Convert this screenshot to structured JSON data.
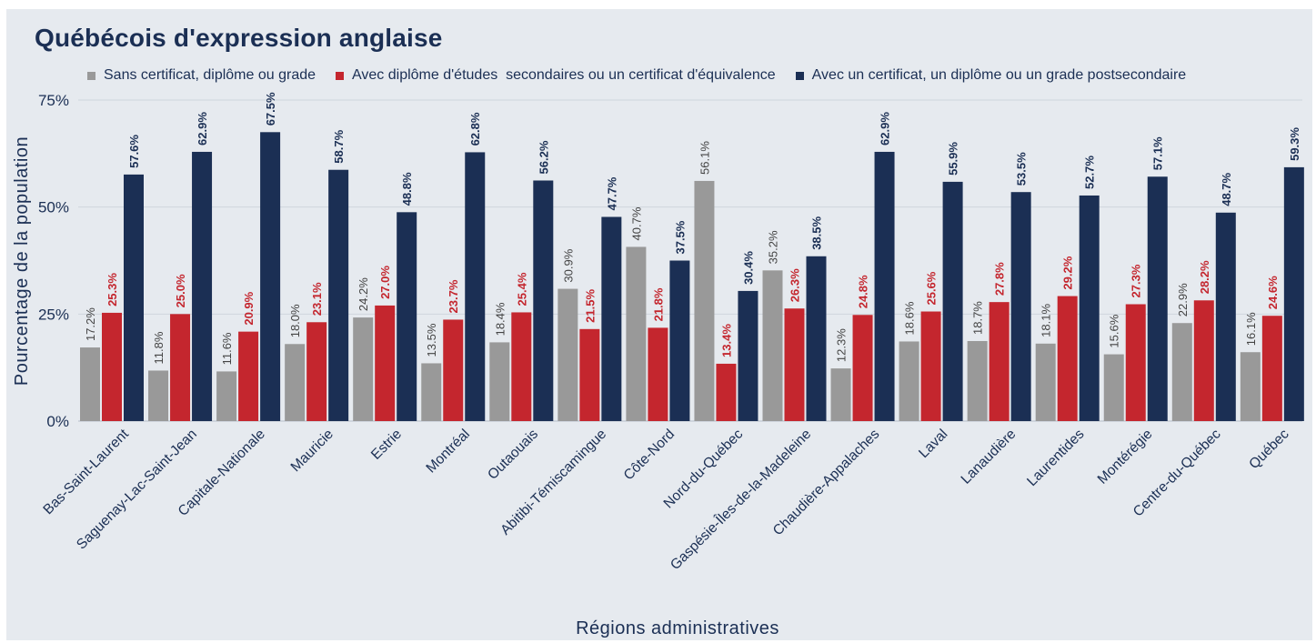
{
  "chart_data": {
    "type": "bar",
    "title": "Québécois d'expression anglaise",
    "xlabel": "Régions administratives",
    "ylabel": "Pourcentage de la population",
    "ylim": [
      0,
      75
    ],
    "yticks": [
      "0%",
      "25%",
      "50%",
      "75%"
    ],
    "grid": true,
    "legend_position": "top-left",
    "categories": [
      "Bas-Saint-Laurent",
      "Saguenay-Lac-Saint-Jean",
      "Capitale-Nationale",
      "Mauricie",
      "Estrie",
      "Montréal",
      "Outaouais",
      "Abitibi-Témiscamingue",
      "Côte-Nord",
      "Nord-du-Québec",
      "Gaspésie-Îles-de-la-Madeleine",
      "Chaudière-Appalaches",
      "Laval",
      "Lanaudière",
      "Laurentides",
      "Montérégie",
      "Centre-du-Québec",
      "Québec"
    ],
    "series": [
      {
        "name": "Sans certificat, diplôme ou grade",
        "color": "#999999",
        "label_color": "#444444",
        "label_bold": false,
        "values": [
          17.2,
          11.8,
          11.6,
          18.0,
          24.2,
          13.5,
          18.4,
          30.9,
          40.7,
          56.1,
          35.2,
          12.3,
          18.6,
          18.7,
          18.1,
          15.6,
          22.9,
          16.1
        ],
        "labels": [
          "17.2%",
          "11.8%",
          "11.6%",
          "18.0%",
          "24.2%",
          "13.5%",
          "18.4%",
          "30.9%",
          "40.7%",
          "56.1%",
          "35.2%",
          "12.3%",
          "18.6%",
          "18.7%",
          "18.1%",
          "15.6%",
          "22.9%",
          "16.1%"
        ]
      },
      {
        "name": "Avec diplôme d'études  secondaires ou un certificat d'équivalence",
        "color": "#c4262e",
        "label_color": "#c4262e",
        "label_bold": true,
        "values": [
          25.3,
          25.0,
          20.9,
          23.1,
          27.0,
          23.7,
          25.4,
          21.5,
          21.8,
          13.4,
          26.3,
          24.8,
          25.6,
          27.8,
          29.2,
          27.3,
          28.2,
          24.6
        ],
        "labels": [
          "25.3%",
          "25.0%",
          "20.9%",
          "23.1%",
          "27.0%",
          "23.7%",
          "25.4%",
          "21.5%",
          "21.8%",
          "13.4%",
          "26.3%",
          "24.8%",
          "25.6%",
          "27.8%",
          "29.2%",
          "27.3%",
          "28.2%",
          "24.6%"
        ]
      },
      {
        "name": "Avec un certificat, un diplôme ou un grade postsecondaire",
        "color": "#1b2f54",
        "label_color": "#1b2f54",
        "label_bold": true,
        "values": [
          57.6,
          62.9,
          67.5,
          58.7,
          48.8,
          62.8,
          56.2,
          47.7,
          37.5,
          30.4,
          38.5,
          62.9,
          55.9,
          53.5,
          52.7,
          57.1,
          48.7,
          59.3
        ],
        "labels": [
          "57.6%",
          "62.9%",
          "67.5%",
          "58.7%",
          "48.8%",
          "62.8%",
          "56.2%",
          "47.7%",
          "37.5%",
          "30.4%",
          "38.5%",
          "62.9%",
          "55.9%",
          "53.5%",
          "52.7%",
          "57.1%",
          "48.7%",
          "59.3%"
        ]
      }
    ]
  }
}
